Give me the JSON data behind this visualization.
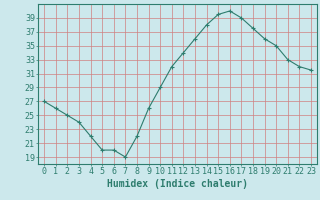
{
  "x": [
    0,
    1,
    2,
    3,
    4,
    5,
    6,
    7,
    8,
    9,
    10,
    11,
    12,
    13,
    14,
    15,
    16,
    17,
    18,
    19,
    20,
    21,
    22,
    23
  ],
  "y": [
    27,
    26,
    25,
    24,
    22,
    20,
    20,
    19,
    22,
    26,
    29,
    32,
    34,
    36,
    38,
    39.5,
    40,
    39,
    37.5,
    36,
    35,
    33,
    32,
    31.5
  ],
  "xlabel": "Humidex (Indice chaleur)",
  "xlim": [
    -0.5,
    23.5
  ],
  "ylim": [
    18,
    41
  ],
  "yticks": [
    19,
    21,
    23,
    25,
    27,
    29,
    31,
    33,
    35,
    37,
    39
  ],
  "xticks": [
    0,
    1,
    2,
    3,
    4,
    5,
    6,
    7,
    8,
    9,
    10,
    11,
    12,
    13,
    14,
    15,
    16,
    17,
    18,
    19,
    20,
    21,
    22,
    23
  ],
  "line_color": "#2e7d6e",
  "marker": "+",
  "bg_color": "#cce8ec",
  "grid_color_v": "#d08080",
  "grid_color_h": "#d08080",
  "spine_color": "#2e7d6e",
  "xlabel_fontsize": 7,
  "tick_fontsize": 6
}
